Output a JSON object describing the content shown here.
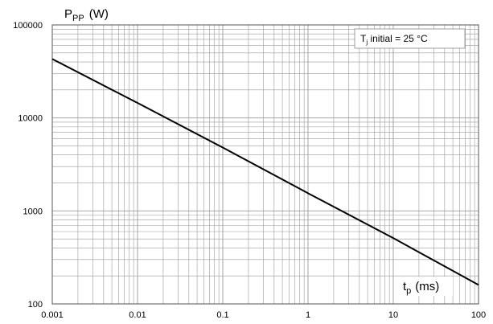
{
  "chart_data": {
    "type": "line",
    "title": "",
    "xscale": "log",
    "yscale": "log",
    "xlim": [
      0.001,
      100
    ],
    "ylim": [
      100,
      100000
    ],
    "grid": true,
    "x_ticks": [
      "0.001",
      "0.01",
      "0.1",
      "1",
      "10",
      "100"
    ],
    "y_ticks": [
      "100",
      "1000",
      "10000",
      "100000"
    ],
    "ylabel": {
      "main": "P",
      "sub": "PP",
      "unit": "(W)"
    },
    "xlabel": {
      "main": "t",
      "sub": "p",
      "unit": "(ms)"
    },
    "annotation": {
      "main": "T",
      "sub": "j",
      "rest": " initial = 25 °C",
      "placement": "top-right"
    },
    "series": [
      {
        "x": [
          0.001,
          0.01,
          0.1,
          1,
          10,
          100
        ],
        "y": [
          43000,
          14500,
          4800,
          1550,
          510,
          160
        ]
      }
    ],
    "colors": {
      "line": "#000000",
      "grid": "#9a9a9a",
      "frame": "#555555"
    }
  }
}
